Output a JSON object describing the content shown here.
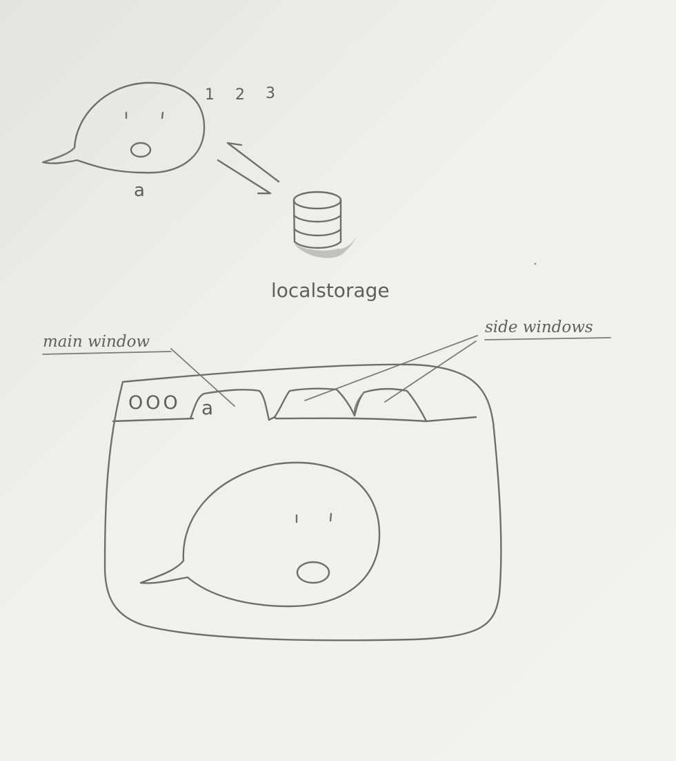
{
  "top_character": {
    "label": "a",
    "counter": [
      "1",
      "2",
      "3"
    ]
  },
  "storage": {
    "label": "localstorage"
  },
  "annotations": {
    "main_window": "main window",
    "side_windows": "side windows"
  },
  "browser": {
    "traffic_lights": "OOO",
    "active_tab_label": "a"
  }
}
